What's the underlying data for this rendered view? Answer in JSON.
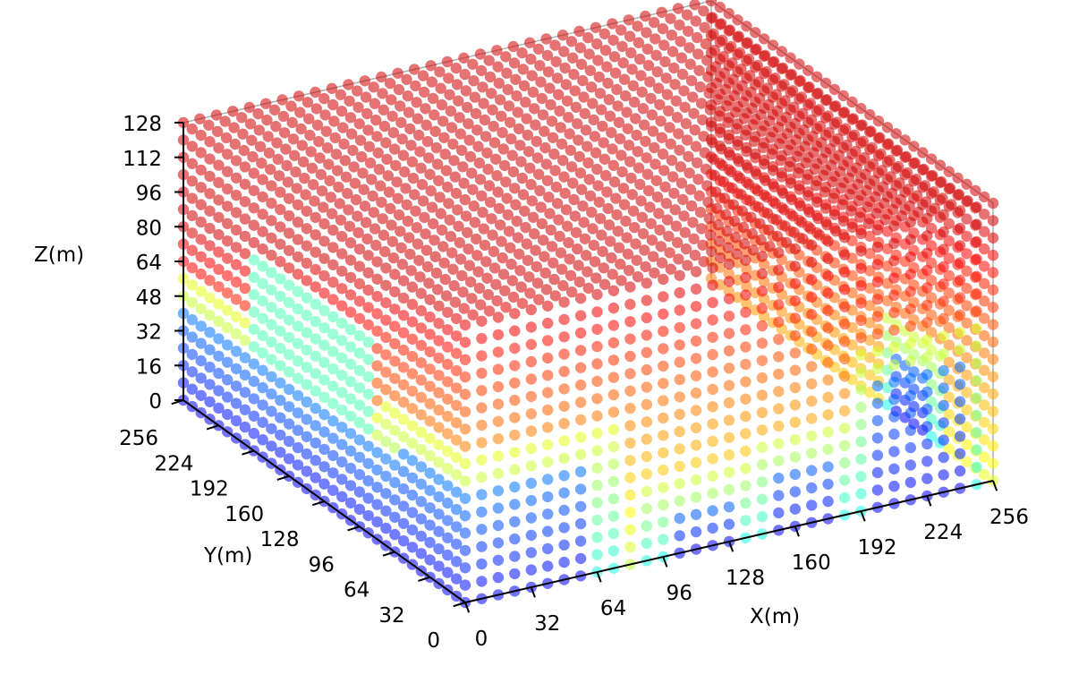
{
  "chart_data": {
    "type": "scatter",
    "projection": "3d",
    "title": "",
    "xlabel": "X(m)",
    "ylabel": "Y(m)",
    "zlabel": "Z(m)",
    "xlim": [
      0,
      256
    ],
    "ylim": [
      0,
      256
    ],
    "zlim": [
      0,
      128
    ],
    "x_ticks": [
      "0",
      "32",
      "64",
      "96",
      "128",
      "160",
      "192",
      "224",
      "256"
    ],
    "y_ticks": [
      "0",
      "32",
      "64",
      "96",
      "128",
      "160",
      "192",
      "224",
      "256"
    ],
    "z_ticks": [
      "0",
      "16",
      "32",
      "48",
      "64",
      "80",
      "96",
      "112",
      "128"
    ],
    "colormap": "jet",
    "grid": false,
    "legend": "none",
    "marker_alpha": 0.55,
    "description_of_values": "Dense voxel grid of points colored by a scalar field; low-Z building columns appear blue/cyan, upper and rear region mostly orange/red."
  }
}
